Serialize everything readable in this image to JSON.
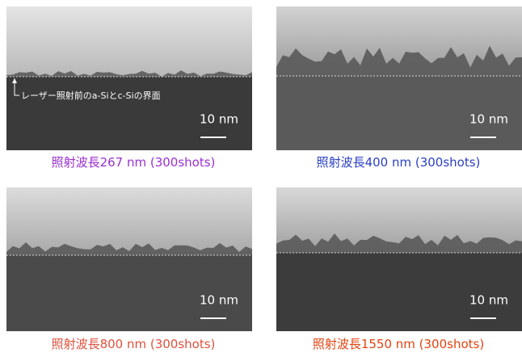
{
  "panels": [
    {
      "caption": "照射波長267 nm (300shots)",
      "caption_color": "#9a2fd0",
      "scale_label": "10 nm",
      "annotation": "レーザー照射前のa-Siとc-Siの界面"
    },
    {
      "caption": "照射波長400 nm (300shots)",
      "caption_color": "#2a3fc4",
      "scale_label": "10 nm"
    },
    {
      "caption": "照射波長800 nm (300shots)",
      "caption_color": "#e0503c",
      "scale_label": "10 nm"
    },
    {
      "caption": "照射波長1550 nm (300shots)",
      "caption_color": "#e2430f",
      "scale_label": "10 nm"
    }
  ]
}
